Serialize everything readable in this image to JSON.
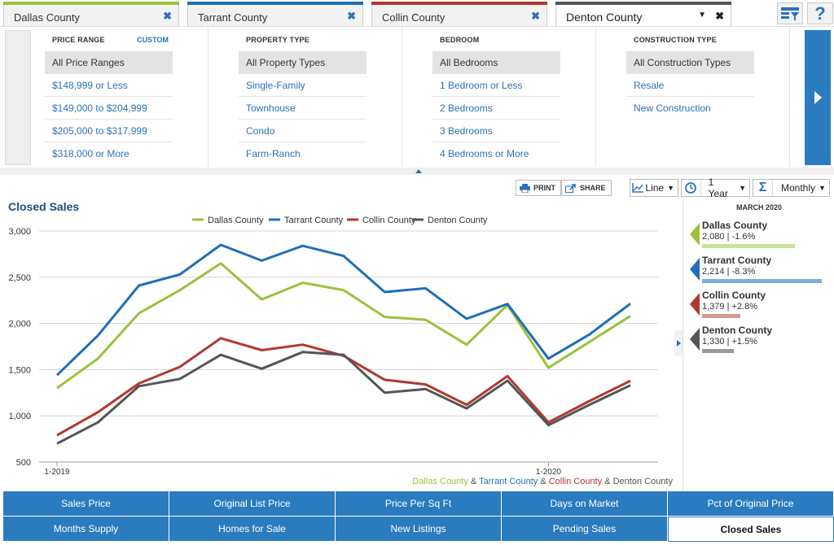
{
  "tabs": [
    {
      "label": "Dallas County",
      "color": "#9bc13c"
    },
    {
      "label": "Tarrant County",
      "color": "#1f6fb5"
    },
    {
      "label": "Collin County",
      "color": "#b03a2e"
    },
    {
      "label": "Denton County",
      "color": "#555555",
      "active": true
    }
  ],
  "filters": {
    "price": {
      "header": "PRICE RANGE",
      "custom": "CUSTOM",
      "items": [
        "All Price Ranges",
        "$148,999 or Less",
        "$149,000 to $204,999",
        "$205,000 to $317,999",
        "$318,000 or More"
      ]
    },
    "property": {
      "header": "PROPERTY TYPE",
      "items": [
        "All Property Types",
        "Single-Family",
        "Townhouse",
        "Condo",
        "Farm-Ranch"
      ]
    },
    "bedroom": {
      "header": "BEDROOM",
      "items": [
        "All Bedrooms",
        "1 Bedroom or Less",
        "2 Bedrooms",
        "3 Bedrooms",
        "4 Bedrooms or More"
      ]
    },
    "construction": {
      "header": "CONSTRUCTION TYPE",
      "items": [
        "All Construction Types",
        "Resale",
        "New Construction"
      ]
    }
  },
  "toolbar": {
    "print": "PRINT",
    "share": "SHARE",
    "chart_type": "Line",
    "period": "1 Year",
    "interval": "Monthly"
  },
  "chart_title": "Closed Sales",
  "chart_data": {
    "type": "line",
    "x": [
      "1-2019",
      "2-2019",
      "3-2019",
      "4-2019",
      "5-2019",
      "6-2019",
      "7-2019",
      "8-2019",
      "9-2019",
      "10-2019",
      "11-2019",
      "12-2019",
      "1-2020",
      "2-2020",
      "3-2020"
    ],
    "x_tick_labels": [
      "1-2019",
      "1-2020"
    ],
    "ylim": [
      500,
      3000
    ],
    "y_ticks": [
      "500",
      "1,000",
      "1,500",
      "2,000",
      "2,500",
      "3,000"
    ],
    "grid": true,
    "legend_position": "top",
    "series": [
      {
        "name": "Dallas County",
        "color": "#9bc13c",
        "values": [
          1300,
          1620,
          2110,
          2360,
          2650,
          2260,
          2440,
          2360,
          2070,
          2040,
          1770,
          2200,
          1520,
          1800,
          2080
        ]
      },
      {
        "name": "Tarrant County",
        "color": "#1f6fb5",
        "values": [
          1440,
          1870,
          2410,
          2530,
          2850,
          2680,
          2840,
          2730,
          2340,
          2380,
          2050,
          2210,
          1620,
          1880,
          2214
        ]
      },
      {
        "name": "Collin County",
        "color": "#b03a2e",
        "values": [
          790,
          1040,
          1350,
          1530,
          1840,
          1710,
          1770,
          1650,
          1390,
          1340,
          1120,
          1430,
          930,
          1160,
          1379
        ]
      },
      {
        "name": "Denton County",
        "color": "#555555",
        "values": [
          700,
          930,
          1320,
          1400,
          1660,
          1510,
          1690,
          1660,
          1250,
          1290,
          1080,
          1380,
          900,
          1120,
          1330
        ]
      }
    ],
    "footnote": [
      {
        "text": "Dallas County",
        "color": "#9bc13c"
      },
      {
        "text": " & ",
        "color": "#555555"
      },
      {
        "text": "Tarrant County",
        "color": "#1f6fb5"
      },
      {
        "text": " & ",
        "color": "#555555"
      },
      {
        "text": "Collin County",
        "color": "#b03a2e"
      },
      {
        "text": " & Denton County",
        "color": "#555555"
      }
    ]
  },
  "right_panel": {
    "date": "MARCH 2020",
    "items": [
      {
        "name": "Dallas County",
        "value": "2,080 | -1.6%",
        "color": "#9bc13c",
        "bar_color": "#c9e09a",
        "bar_fraction": 0.76
      },
      {
        "name": "Tarrant County",
        "value": "2,214 | -8.3%",
        "color": "#1f6fb5",
        "bar_color": "#79afdc",
        "bar_fraction": 0.98
      },
      {
        "name": "Collin County",
        "value": "1,379 | +2.8%",
        "color": "#b03a2e",
        "bar_color": "#d99891",
        "bar_fraction": 0.31
      },
      {
        "name": "Denton County",
        "value": "1,330 | +1.5%",
        "color": "#555555",
        "bar_color": "#9a9a9a",
        "bar_fraction": 0.26
      }
    ]
  },
  "metrics": {
    "row1": [
      "Sales Price",
      "Original List Price",
      "Price Per Sq Ft",
      "Days on Market",
      "Pct of Original Price"
    ],
    "row2": [
      "Months Supply",
      "Homes for Sale",
      "New Listings",
      "Pending Sales",
      "Closed Sales"
    ],
    "active": "Closed Sales"
  }
}
